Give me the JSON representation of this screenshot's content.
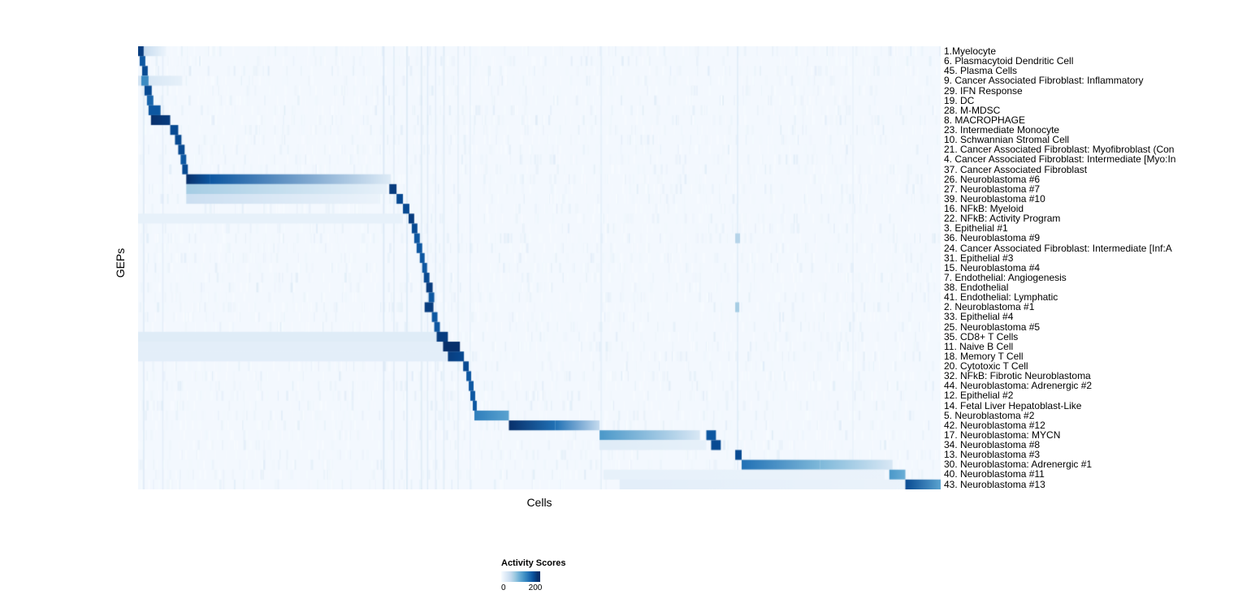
{
  "figure": {
    "background": "#ffffff"
  },
  "chart_data": {
    "type": "heatmap",
    "title": "",
    "xlabel": "Cells",
    "ylabel": "GEPs",
    "legend": {
      "title": "Activity Scores",
      "ticks": [
        "0",
        "200"
      ],
      "value_range": [
        0,
        200
      ]
    },
    "colormap": {
      "name": "Blues",
      "stops": [
        "#f7fbff",
        "#deebf7",
        "#c6dbef",
        "#9ecae1",
        "#6baed6",
        "#4292c6",
        "#2171b5",
        "#08519c",
        "#08306b"
      ]
    },
    "noise": {
      "seed": 11,
      "per_row": 160,
      "max_v": 0.11
    },
    "column_streaks": [
      {
        "x": 0.006,
        "w": 0.002,
        "v": 0.18
      },
      {
        "x": 0.03,
        "w": 0.0015,
        "v": 0.15
      },
      {
        "x": 0.305,
        "w": 0.002,
        "v": 0.22
      },
      {
        "x": 0.318,
        "w": 0.0015,
        "v": 0.18
      },
      {
        "x": 0.334,
        "w": 0.002,
        "v": 0.2
      },
      {
        "x": 0.352,
        "w": 0.002,
        "v": 0.18
      },
      {
        "x": 0.36,
        "w": 0.0015,
        "v": 0.2
      },
      {
        "x": 0.37,
        "w": 0.0015,
        "v": 0.15
      },
      {
        "x": 0.38,
        "w": 0.002,
        "v": 0.15
      },
      {
        "x": 0.398,
        "w": 0.0015,
        "v": 0.15
      },
      {
        "x": 0.413,
        "w": 0.0015,
        "v": 0.12
      },
      {
        "x": 0.576,
        "w": 0.002,
        "v": 0.12
      },
      {
        "x": 0.746,
        "w": 0.002,
        "v": 0.16
      },
      {
        "x": 0.89,
        "w": 0.0015,
        "v": 0.1
      }
    ],
    "rows": [
      {
        "label": "1.Myelocyte",
        "segments": [
          [
            0.0,
            0.007,
            0.95,
            0.95
          ],
          [
            0.007,
            0.035,
            0.25,
            0.05
          ]
        ]
      },
      {
        "label": "6. Plasmacytoid Dendritic Cell",
        "segments": [
          [
            0.002,
            0.009,
            0.85,
            0.85
          ]
        ]
      },
      {
        "label": "45. Plasma Cells",
        "segments": [
          [
            0.005,
            0.012,
            0.9,
            0.9
          ]
        ]
      },
      {
        "label": "9. Cancer Associated Fibroblast: Inflammatory",
        "segments": [
          [
            0.0,
            0.055,
            0.18,
            0.08
          ],
          [
            0.004,
            0.013,
            0.65,
            0.65
          ]
        ]
      },
      {
        "label": "29. IFN Response",
        "segments": [
          [
            0.008,
            0.017,
            0.9,
            0.9
          ]
        ]
      },
      {
        "label": "19. DC",
        "segments": [
          [
            0.011,
            0.019,
            0.8,
            0.8
          ]
        ]
      },
      {
        "label": "28. M-MDSC",
        "segments": [
          [
            0.013,
            0.028,
            0.85,
            0.85
          ]
        ]
      },
      {
        "label": "8. MACROPHAGE",
        "segments": [
          [
            0.016,
            0.04,
            1.0,
            0.95
          ]
        ]
      },
      {
        "label": "23. Intermediate Monocyte",
        "segments": [
          [
            0.04,
            0.05,
            0.9,
            0.9
          ]
        ]
      },
      {
        "label": "10. Schwannian Stromal Cell",
        "segments": [
          [
            0.046,
            0.054,
            0.9,
            0.9
          ]
        ]
      },
      {
        "label": "21. Cancer Associated Fibroblast: Myofibroblast (Con",
        "segments": [
          [
            0.05,
            0.058,
            0.9,
            0.9
          ]
        ]
      },
      {
        "label": "4. Cancer Associated Fibroblast: Intermediate [Myo:In",
        "segments": [
          [
            0.053,
            0.06,
            0.85,
            0.85
          ]
        ]
      },
      {
        "label": "37. Cancer Associated Fibroblast",
        "segments": [
          [
            0.055,
            0.062,
            0.9,
            0.9
          ]
        ]
      },
      {
        "label": "26. Neuroblastoma #6",
        "segments": [
          [
            0.06,
            0.09,
            1.0,
            0.85
          ],
          [
            0.09,
            0.315,
            0.85,
            0.12
          ]
        ]
      },
      {
        "label": "27. Neuroblastoma #7",
        "segments": [
          [
            0.06,
            0.31,
            0.35,
            0.08
          ],
          [
            0.313,
            0.322,
            0.95,
            0.95
          ]
        ]
      },
      {
        "label": "39. Neuroblastoma #10",
        "segments": [
          [
            0.06,
            0.3,
            0.22,
            0.06
          ],
          [
            0.322,
            0.33,
            0.9,
            0.9
          ]
        ]
      },
      {
        "label": "16. NFkB: Myeloid",
        "segments": [
          [
            0.33,
            0.338,
            0.9,
            0.9
          ]
        ]
      },
      {
        "label": "22. NFkB: Activity Program",
        "segments": [
          [
            0.0,
            0.33,
            0.08,
            0.08
          ],
          [
            0.337,
            0.344,
            0.95,
            0.95
          ]
        ]
      },
      {
        "label": "3. Epithelial #1",
        "segments": [
          [
            0.341,
            0.348,
            0.9,
            0.9
          ]
        ]
      },
      {
        "label": "36. Neuroblastoma #9",
        "segments": [
          [
            0.344,
            0.351,
            0.85,
            0.85
          ],
          [
            0.744,
            0.75,
            0.3,
            0.3
          ]
        ]
      },
      {
        "label": "24. Cancer Associated Fibroblast: Intermediate [Inf:A",
        "segments": [
          [
            0.347,
            0.354,
            0.85,
            0.85
          ]
        ]
      },
      {
        "label": "31. Epithelial #3",
        "segments": [
          [
            0.351,
            0.357,
            0.85,
            0.85
          ]
        ]
      },
      {
        "label": "15. Neuroblastoma #4",
        "segments": [
          [
            0.354,
            0.36,
            0.85,
            0.85
          ]
        ]
      },
      {
        "label": "7. Endothelial: Angiogenesis",
        "segments": [
          [
            0.356,
            0.363,
            0.9,
            0.9
          ]
        ]
      },
      {
        "label": "38. Endothelial",
        "segments": [
          [
            0.359,
            0.367,
            0.95,
            0.95
          ]
        ]
      },
      {
        "label": "41. Endothelial: Lymphatic",
        "segments": [
          [
            0.362,
            0.369,
            0.85,
            0.85
          ]
        ]
      },
      {
        "label": "2. Neuroblastoma #1",
        "segments": [
          [
            0.357,
            0.368,
            0.95,
            0.95
          ],
          [
            0.744,
            0.749,
            0.35,
            0.35
          ]
        ]
      },
      {
        "label": "33. Epithelial #4",
        "segments": [
          [
            0.366,
            0.373,
            0.85,
            0.85
          ]
        ]
      },
      {
        "label": "25. Neuroblastoma #5",
        "segments": [
          [
            0.369,
            0.376,
            0.85,
            0.85
          ]
        ]
      },
      {
        "label": "35. CD8+ T Cells",
        "segments": [
          [
            0.0,
            0.372,
            0.12,
            0.12
          ],
          [
            0.372,
            0.386,
            0.95,
            0.95
          ]
        ]
      },
      {
        "label": "11. Naive B Cell",
        "segments": [
          [
            0.0,
            0.38,
            0.1,
            0.1
          ],
          [
            0.38,
            0.401,
            1.0,
            1.0
          ]
        ]
      },
      {
        "label": "18. Memory T Cell",
        "segments": [
          [
            0.0,
            0.385,
            0.1,
            0.1
          ],
          [
            0.386,
            0.406,
            0.95,
            0.9
          ]
        ]
      },
      {
        "label": "20. Cytotoxic T Cell",
        "segments": [
          [
            0.405,
            0.412,
            0.9,
            0.9
          ]
        ]
      },
      {
        "label": "32. NFkB: Fibrotic Neuroblastoma",
        "segments": [
          [
            0.409,
            0.415,
            0.85,
            0.85
          ]
        ]
      },
      {
        "label": "44. Neuroblastoma: Adrenergic #2",
        "segments": [
          [
            0.412,
            0.418,
            0.85,
            0.85
          ]
        ]
      },
      {
        "label": "12. Epithelial #2",
        "segments": [
          [
            0.414,
            0.42,
            0.85,
            0.85
          ]
        ]
      },
      {
        "label": "14. Fetal Liver Hepatoblast-Like",
        "segments": [
          [
            0.417,
            0.422,
            0.85,
            0.85
          ]
        ]
      },
      {
        "label": "5. Neuroblastoma #2",
        "segments": [
          [
            0.419,
            0.462,
            0.7,
            0.55
          ]
        ]
      },
      {
        "label": "42. Neuroblastoma #12",
        "segments": [
          [
            0.462,
            0.52,
            1.0,
            0.75
          ],
          [
            0.52,
            0.575,
            0.75,
            0.25
          ]
        ]
      },
      {
        "label": "17. Neuroblastoma: MYCN",
        "segments": [
          [
            0.575,
            0.7,
            0.6,
            0.15
          ],
          [
            0.708,
            0.72,
            0.85,
            0.85
          ]
        ]
      },
      {
        "label": "34. Neuroblastoma #8",
        "segments": [
          [
            0.575,
            0.708,
            0.12,
            0.08
          ],
          [
            0.714,
            0.726,
            0.9,
            0.9
          ]
        ]
      },
      {
        "label": "13. Neuroblastoma #3",
        "segments": [
          [
            0.744,
            0.752,
            0.9,
            0.9
          ]
        ]
      },
      {
        "label": "30. Neuroblastoma: Adrenergic #1",
        "segments": [
          [
            0.752,
            0.85,
            0.75,
            0.45
          ],
          [
            0.85,
            0.94,
            0.45,
            0.15
          ]
        ]
      },
      {
        "label": "40. Neuroblastoma #11",
        "segments": [
          [
            0.58,
            0.93,
            0.08,
            0.06
          ],
          [
            0.936,
            0.956,
            0.6,
            0.5
          ]
        ]
      },
      {
        "label": "43. Neuroblastoma #13",
        "segments": [
          [
            0.6,
            0.956,
            0.1,
            0.06
          ],
          [
            0.956,
            1.0,
            0.9,
            0.55
          ]
        ]
      }
    ]
  }
}
